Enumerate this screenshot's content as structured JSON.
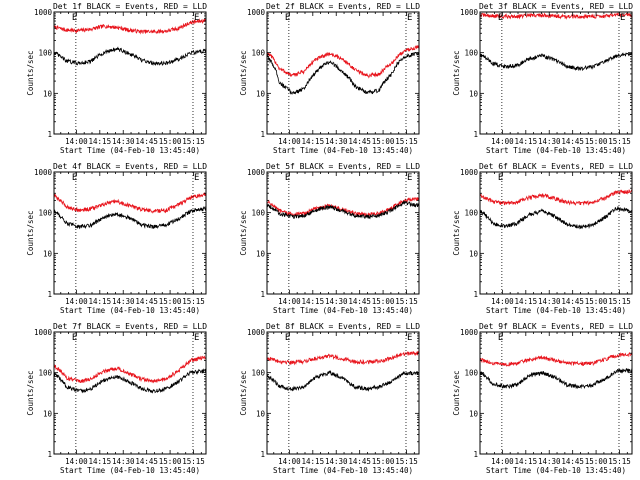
{
  "colors": {
    "events": "#000000",
    "lld": "#e8141c",
    "background": "#ffffff"
  },
  "time_axis": {
    "start": "13:45:40",
    "end": "15:23:00",
    "tick_labels": [
      "14:00",
      "14:15",
      "14:30",
      "14:45",
      "15:00",
      "15:15"
    ],
    "eclipse_marks_minutes": [
      14.0,
      89.0
    ]
  },
  "y_axis": {
    "scale": "log",
    "ylim": [
      1,
      1000
    ],
    "tick_labels": [
      "1",
      "10",
      "100",
      "1000"
    ],
    "ylabel": "Counts/sec"
  },
  "xlabel": "Start Time (04-Feb-10 13:45:40)",
  "chart_data": [
    {
      "type": "line",
      "title": "Det 1f BLACK = Events, RED = LLD",
      "xlabel": "Start Time (04-Feb-10 13:45:40)",
      "ylabel": "Counts/sec",
      "ylim": [
        1,
        1000
      ],
      "yscale": "log",
      "corner_marks": [
        "E",
        "E"
      ],
      "x_minutes": [
        0,
        8,
        16,
        24,
        32,
        40,
        48,
        56,
        64,
        72,
        80,
        88,
        97
      ],
      "series": [
        {
          "color": "#e8141c",
          "values": [
            430,
            360,
            350,
            380,
            450,
            420,
            360,
            330,
            330,
            340,
            400,
            560,
            620
          ]
        },
        {
          "color": "#000000",
          "values": [
            100,
            62,
            55,
            62,
            100,
            125,
            95,
            65,
            55,
            55,
            70,
            100,
            110
          ]
        }
      ]
    },
    {
      "type": "line",
      "title": "Det 2f BLACK = Events, RED = LLD",
      "xlabel": "Start Time (04-Feb-10 13:45:40)",
      "ylabel": "Counts/sec",
      "ylim": [
        1,
        1000
      ],
      "yscale": "log",
      "corner_marks": [
        "E",
        "E"
      ],
      "x_minutes": [
        0,
        8,
        16,
        24,
        32,
        40,
        48,
        56,
        64,
        72,
        80,
        88,
        97
      ],
      "series": [
        {
          "color": "#e8141c",
          "values": [
            100,
            40,
            27,
            35,
            70,
            95,
            70,
            38,
            27,
            30,
            55,
            110,
            140
          ]
        },
        {
          "color": "#000000",
          "values": [
            80,
            18,
            10,
            13,
            35,
            60,
            35,
            15,
            10,
            12,
            30,
            80,
            100
          ]
        }
      ]
    },
    {
      "type": "line",
      "title": "Det 3f BLACK = Events, RED = LLD",
      "xlabel": "Start Time (04-Feb-10 13:45:40)",
      "ylabel": "Counts/sec",
      "ylim": [
        1,
        1000
      ],
      "yscale": "log",
      "corner_marks": [
        "E",
        "E"
      ],
      "x_minutes": [
        0,
        8,
        16,
        24,
        32,
        40,
        48,
        56,
        64,
        72,
        80,
        88,
        97
      ],
      "series": [
        {
          "color": "#e8141c",
          "values": [
            850,
            800,
            780,
            790,
            820,
            830,
            800,
            780,
            770,
            780,
            800,
            830,
            850
          ]
        },
        {
          "color": "#000000",
          "values": [
            90,
            55,
            45,
            50,
            70,
            85,
            65,
            45,
            40,
            45,
            60,
            85,
            95
          ]
        }
      ]
    },
    {
      "type": "line",
      "title": "Det 4f BLACK = Events, RED = LLD",
      "xlabel": "Start Time (04-Feb-10 13:45:40)",
      "ylabel": "Counts/sec",
      "ylim": [
        1,
        1000
      ],
      "yscale": "log",
      "corner_marks": [
        "E",
        "E"
      ],
      "x_minutes": [
        0,
        8,
        16,
        24,
        32,
        40,
        48,
        56,
        64,
        72,
        80,
        88,
        97
      ],
      "series": [
        {
          "color": "#e8141c",
          "values": [
            260,
            140,
            115,
            125,
            160,
            190,
            150,
            120,
            110,
            115,
            160,
            240,
            280
          ]
        },
        {
          "color": "#000000",
          "values": [
            110,
            55,
            45,
            50,
            75,
            95,
            75,
            50,
            45,
            50,
            70,
            110,
            125
          ]
        }
      ]
    },
    {
      "type": "line",
      "title": "Det 5f BLACK = Events, RED = LLD",
      "xlabel": "Start Time (04-Feb-10 13:45:40)",
      "ylabel": "Counts/sec",
      "ylim": [
        1,
        1000
      ],
      "yscale": "log",
      "corner_marks": [
        "E",
        "E"
      ],
      "x_minutes": [
        0,
        8,
        16,
        24,
        32,
        40,
        48,
        56,
        64,
        72,
        80,
        88,
        97
      ],
      "series": [
        {
          "color": "#e8141c",
          "values": [
            190,
            110,
            90,
            95,
            130,
            150,
            120,
            95,
            90,
            95,
            130,
            200,
            220
          ]
        },
        {
          "color": "#000000",
          "values": [
            160,
            95,
            80,
            85,
            115,
            140,
            110,
            85,
            80,
            85,
            115,
            175,
            150
          ]
        }
      ]
    },
    {
      "type": "line",
      "title": "Det 6f BLACK = Events, RED = LLD",
      "xlabel": "Start Time (04-Feb-10 13:45:40)",
      "ylabel": "Counts/sec",
      "ylim": [
        1,
        1000
      ],
      "yscale": "log",
      "corner_marks": [
        "E",
        "E"
      ],
      "x_minutes": [
        0,
        8,
        16,
        24,
        32,
        40,
        48,
        56,
        64,
        72,
        80,
        88,
        97
      ],
      "series": [
        {
          "color": "#e8141c",
          "values": [
            260,
            190,
            170,
            180,
            240,
            270,
            220,
            180,
            170,
            180,
            230,
            320,
            330
          ]
        },
        {
          "color": "#000000",
          "values": [
            110,
            55,
            45,
            55,
            90,
            110,
            80,
            50,
            45,
            50,
            75,
            130,
            110
          ]
        }
      ]
    },
    {
      "type": "line",
      "title": "Det 7f BLACK = Events, RED = LLD",
      "xlabel": "Start Time (04-Feb-10 13:45:40)",
      "ylabel": "Counts/sec",
      "ylim": [
        1,
        1000
      ],
      "yscale": "log",
      "corner_marks": [
        "E",
        "E"
      ],
      "x_minutes": [
        0,
        8,
        16,
        24,
        32,
        40,
        48,
        56,
        64,
        72,
        80,
        88,
        97
      ],
      "series": [
        {
          "color": "#e8141c",
          "values": [
            150,
            75,
            60,
            70,
            110,
            130,
            95,
            70,
            60,
            70,
            110,
            200,
            240
          ]
        },
        {
          "color": "#000000",
          "values": [
            95,
            45,
            35,
            40,
            65,
            80,
            60,
            40,
            35,
            40,
            60,
            105,
            110
          ]
        }
      ]
    },
    {
      "type": "line",
      "title": "Det 8f BLACK = Events, RED = LLD",
      "xlabel": "Start Time (04-Feb-10 13:45:40)",
      "ylabel": "Counts/sec",
      "ylim": [
        1,
        1000
      ],
      "yscale": "log",
      "corner_marks": [
        "E",
        "E"
      ],
      "x_minutes": [
        0,
        8,
        16,
        24,
        32,
        40,
        48,
        56,
        64,
        72,
        80,
        88,
        97
      ],
      "series": [
        {
          "color": "#e8141c",
          "values": [
            230,
            190,
            180,
            190,
            230,
            260,
            220,
            190,
            180,
            190,
            230,
            290,
            300
          ]
        },
        {
          "color": "#000000",
          "values": [
            85,
            45,
            40,
            45,
            80,
            100,
            75,
            45,
            40,
            45,
            60,
            95,
            100
          ]
        }
      ]
    },
    {
      "type": "line",
      "title": "Det 9f BLACK = Events, RED = LLD",
      "xlabel": "Start Time (04-Feb-10 13:45:40)",
      "ylabel": "Counts/sec",
      "ylim": [
        1,
        1000
      ],
      "yscale": "log",
      "corner_marks": [
        "E",
        "E"
      ],
      "x_minutes": [
        0,
        8,
        16,
        24,
        32,
        40,
        48,
        56,
        64,
        72,
        80,
        88,
        97
      ],
      "series": [
        {
          "color": "#e8141c",
          "values": [
            210,
            170,
            160,
            170,
            210,
            240,
            200,
            170,
            165,
            170,
            210,
            270,
            280
          ]
        },
        {
          "color": "#000000",
          "values": [
            100,
            55,
            45,
            50,
            85,
            100,
            75,
            50,
            45,
            50,
            70,
            110,
            115
          ]
        }
      ]
    }
  ]
}
